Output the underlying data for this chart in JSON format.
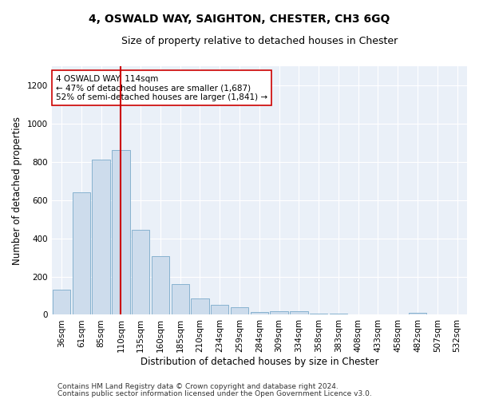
{
  "title": "4, OSWALD WAY, SAIGHTON, CHESTER, CH3 6GQ",
  "subtitle": "Size of property relative to detached houses in Chester",
  "xlabel": "Distribution of detached houses by size in Chester",
  "ylabel": "Number of detached properties",
  "categories": [
    "36sqm",
    "61sqm",
    "85sqm",
    "110sqm",
    "135sqm",
    "160sqm",
    "185sqm",
    "210sqm",
    "234sqm",
    "259sqm",
    "284sqm",
    "309sqm",
    "334sqm",
    "358sqm",
    "383sqm",
    "408sqm",
    "433sqm",
    "458sqm",
    "482sqm",
    "507sqm",
    "532sqm"
  ],
  "values": [
    130,
    640,
    810,
    860,
    445,
    305,
    160,
    85,
    50,
    38,
    15,
    18,
    18,
    5,
    5,
    3,
    2,
    2,
    10,
    2,
    2
  ],
  "bar_color": "#cddcec",
  "bar_edge_color": "#7aaaca",
  "vline_x": 3,
  "vline_color": "#cc0000",
  "annotation_text": "4 OSWALD WAY: 114sqm\n← 47% of detached houses are smaller (1,687)\n52% of semi-detached houses are larger (1,841) →",
  "annotation_box_facecolor": "#ffffff",
  "annotation_box_edgecolor": "#cc0000",
  "ylim": [
    0,
    1300
  ],
  "yticks": [
    0,
    200,
    400,
    600,
    800,
    1000,
    1200
  ],
  "fig_facecolor": "#ffffff",
  "ax_facecolor": "#eaf0f8",
  "grid_color": "#ffffff",
  "title_fontsize": 10,
  "subtitle_fontsize": 9,
  "axis_label_fontsize": 8.5,
  "tick_fontsize": 7.5,
  "annotation_fontsize": 7.5,
  "footer_fontsize": 6.5,
  "footer_line1": "Contains HM Land Registry data © Crown copyright and database right 2024.",
  "footer_line2": "Contains public sector information licensed under the Open Government Licence v3.0."
}
